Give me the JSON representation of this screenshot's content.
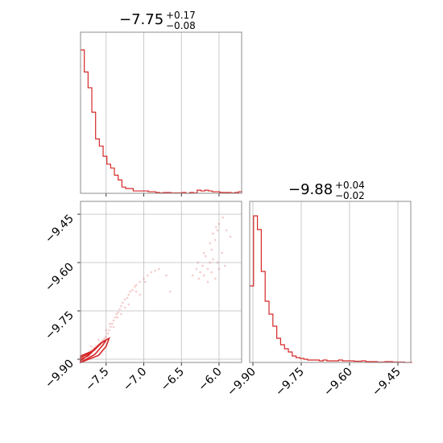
{
  "chart_data": {
    "type": "corner",
    "color": "#d62728",
    "parameters": [
      {
        "title": {
          "median": "−7.75",
          "plus": "+0.17",
          "minus": "−0.08"
        },
        "range": [
          -7.84,
          -5.7
        ],
        "ticks": [
          -7.5,
          -7.0,
          -6.5,
          -6.0
        ],
        "tick_labels": [
          "−7.5",
          "−7.0",
          "−6.5",
          "−6.0"
        ],
        "hist_x": [
          -7.84,
          -7.79,
          -7.74,
          -7.69,
          -7.64,
          -7.59,
          -7.54,
          -7.49,
          -7.44,
          -7.39,
          -7.34,
          -7.29,
          -7.24,
          -7.19,
          -7.14,
          -7.09,
          -7.04,
          -6.99,
          -6.94,
          -6.89,
          -6.84,
          -6.79,
          -6.74,
          -6.69,
          -6.64,
          -6.59,
          -6.54,
          -6.49,
          -6.44,
          -6.39,
          -6.34,
          -6.29,
          -6.24,
          -6.19,
          -6.14,
          -6.09,
          -6.04,
          -5.99,
          -5.94,
          -5.89,
          -5.84,
          -5.79,
          -5.74
        ],
        "hist_counts": [
          182,
          154,
          134,
          103,
          69,
          60,
          47,
          37,
          32,
          23,
          17,
          8,
          6,
          6,
          3,
          3,
          3,
          3,
          2,
          2,
          1,
          0.5,
          1,
          1,
          0.5,
          0.5,
          0.5,
          1,
          0,
          1,
          0.5,
          4,
          3,
          4,
          3,
          2,
          2,
          1,
          1,
          1,
          0.5,
          1,
          2
        ]
      },
      {
        "title": {
          "median": "−9.88",
          "plus": "+0.04",
          "minus": "−0.02"
        },
        "range": [
          -9.91,
          -9.41
        ],
        "ticks": [
          -9.9,
          -9.75,
          -9.6,
          -9.45
        ],
        "tick_labels": [
          "−9.90",
          "−9.75",
          "−9.60",
          "−9.45"
        ],
        "hist_x": [
          -9.91,
          -9.898,
          -9.886,
          -9.874,
          -9.862,
          -9.85,
          -9.838,
          -9.826,
          -9.814,
          -9.802,
          -9.79,
          -9.778,
          -9.766,
          -9.754,
          -9.742,
          -9.73,
          -9.718,
          -9.706,
          -9.694,
          -9.682,
          -9.67,
          -9.658,
          -9.646,
          -9.634,
          -9.622,
          -9.61,
          -9.598,
          -9.586,
          -9.574,
          -9.562,
          -9.55,
          -9.538,
          -9.526,
          -9.514,
          -9.502,
          -9.49,
          -9.478,
          -9.466,
          -9.454,
          -9.442,
          -9.43,
          -9.418
        ],
        "hist_counts": [
          95,
          182,
          165,
          113,
          76,
          60,
          45,
          30,
          22,
          17,
          13,
          8,
          6,
          5,
          4,
          3,
          3,
          3,
          2,
          3,
          2,
          2,
          2,
          3,
          2,
          2,
          2,
          1.5,
          1.5,
          2,
          1,
          1,
          1,
          0.5,
          0.5,
          1,
          1,
          0.5,
          0.5,
          0.5,
          0,
          0
        ]
      }
    ],
    "scatter": [
      [
        -7.83,
        -9.905
      ],
      [
        -7.8,
        -9.9
      ],
      [
        -7.78,
        -9.89
      ],
      [
        -7.75,
        -9.885
      ],
      [
        -7.72,
        -9.88
      ],
      [
        -7.7,
        -9.875
      ],
      [
        -7.68,
        -9.87
      ],
      [
        -7.66,
        -9.865
      ],
      [
        -7.63,
        -9.86
      ],
      [
        -7.6,
        -9.855
      ],
      [
        -7.58,
        -9.85
      ],
      [
        -7.56,
        -9.845
      ],
      [
        -7.54,
        -9.84
      ],
      [
        -7.52,
        -9.835
      ],
      [
        -7.5,
        -9.83
      ],
      [
        -7.48,
        -9.82
      ],
      [
        -7.46,
        -9.81
      ],
      [
        -7.44,
        -9.8
      ],
      [
        -7.42,
        -9.79
      ],
      [
        -7.4,
        -9.78
      ],
      [
        -7.38,
        -9.77
      ],
      [
        -7.36,
        -9.76
      ],
      [
        -7.34,
        -9.755
      ],
      [
        -7.32,
        -9.745
      ],
      [
        -7.3,
        -9.735
      ],
      [
        -7.28,
        -9.725
      ],
      [
        -7.25,
        -9.715
      ],
      [
        -7.22,
        -9.71
      ],
      [
        -7.2,
        -9.7
      ],
      [
        -7.18,
        -9.69
      ],
      [
        -7.15,
        -9.685
      ],
      [
        -7.12,
        -9.675
      ],
      [
        -7.1,
        -9.67
      ],
      [
        -7.05,
        -9.66
      ],
      [
        -7.0,
        -9.65
      ],
      [
        -6.95,
        -9.64
      ],
      [
        -6.9,
        -9.63
      ],
      [
        -6.85,
        -9.625
      ],
      [
        -6.8,
        -9.62
      ],
      [
        -6.7,
        -9.64
      ],
      [
        -6.65,
        -9.69
      ],
      [
        -7.45,
        -9.79
      ],
      [
        -7.35,
        -9.77
      ],
      [
        -7.25,
        -9.74
      ],
      [
        -7.5,
        -9.81
      ],
      [
        -7.6,
        -9.84
      ],
      [
        -7.65,
        -9.87
      ],
      [
        -7.7,
        -9.86
      ],
      [
        -7.4,
        -9.8
      ],
      [
        -7.3,
        -9.76
      ],
      [
        -7.2,
        -9.73
      ],
      [
        -7.1,
        -9.69
      ],
      [
        -7.05,
        -9.7
      ],
      [
        -6.98,
        -9.66
      ],
      [
        -6.3,
        -9.62
      ],
      [
        -6.28,
        -9.6
      ],
      [
        -6.25,
        -9.63
      ],
      [
        -6.22,
        -9.61
      ],
      [
        -6.2,
        -9.64
      ],
      [
        -6.18,
        -9.58
      ],
      [
        -6.15,
        -9.62
      ],
      [
        -6.12,
        -9.6
      ],
      [
        -6.1,
        -9.63
      ],
      [
        -6.08,
        -9.59
      ],
      [
        -6.05,
        -9.65
      ],
      [
        -6.02,
        -9.6
      ],
      [
        -6.0,
        -9.62
      ],
      [
        -6.2,
        -9.57
      ],
      [
        -6.1,
        -9.56
      ],
      [
        -6.05,
        -9.53
      ],
      [
        -6.02,
        -9.5
      ],
      [
        -6.0,
        -9.48
      ],
      [
        -5.95,
        -9.46
      ],
      [
        -6.08,
        -9.51
      ],
      [
        -6.12,
        -9.54
      ],
      [
        -5.9,
        -9.5
      ],
      [
        -5.85,
        -9.52
      ],
      [
        -6.35,
        -9.64
      ],
      [
        -6.27,
        -9.65
      ],
      [
        -6.15,
        -9.66
      ],
      [
        -5.96,
        -9.57
      ],
      [
        -5.92,
        -9.61
      ],
      [
        -6.04,
        -9.49
      ]
    ],
    "contours": [
      [
        [
          -7.84,
          -9.905
        ],
        [
          -7.7,
          -9.88
        ],
        [
          -7.6,
          -9.858
        ],
        [
          -7.56,
          -9.848
        ],
        [
          -7.62,
          -9.862
        ],
        [
          -7.74,
          -9.89
        ],
        [
          -7.84,
          -9.9
        ]
      ],
      [
        [
          -7.84,
          -9.91
        ],
        [
          -7.65,
          -9.885
        ],
        [
          -7.54,
          -9.855
        ],
        [
          -7.5,
          -9.84
        ],
        [
          -7.58,
          -9.852
        ],
        [
          -7.7,
          -9.878
        ],
        [
          -7.84,
          -9.895
        ]
      ],
      [
        [
          -7.84,
          -9.91
        ],
        [
          -7.6,
          -9.888
        ],
        [
          -7.5,
          -9.86
        ],
        [
          -7.46,
          -9.835
        ],
        [
          -7.54,
          -9.845
        ],
        [
          -7.66,
          -9.872
        ],
        [
          -7.84,
          -9.89
        ]
      ]
    ]
  }
}
